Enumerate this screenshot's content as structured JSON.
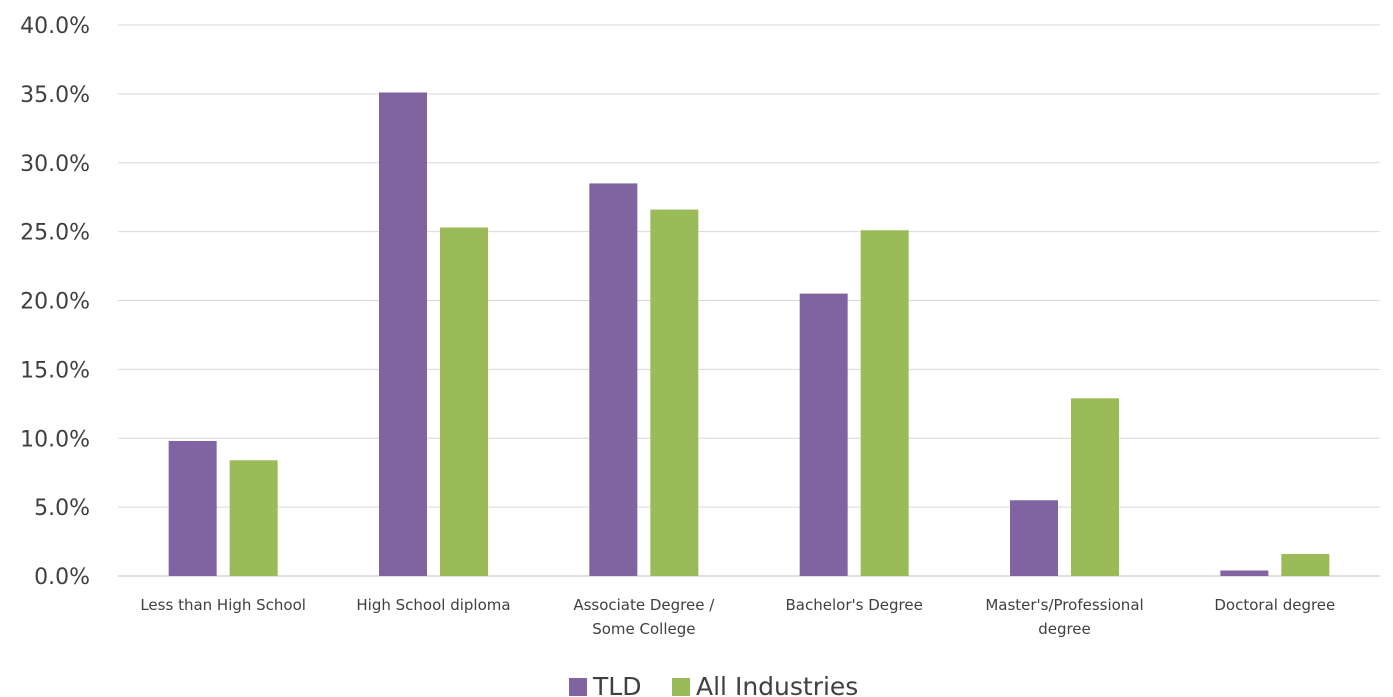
{
  "chart_data": {
    "type": "bar",
    "title": "",
    "xlabel": "",
    "ylabel": "",
    "categories": [
      [
        "Less than High School"
      ],
      [
        "High School diploma"
      ],
      [
        "Associate Degree /",
        "Some College"
      ],
      [
        "Bachelor's Degree"
      ],
      [
        "Master's/Professional",
        "degree"
      ],
      [
        "Doctoral degree"
      ]
    ],
    "series": [
      {
        "name": "TLD",
        "color": "#8064a2",
        "values": [
          9.8,
          35.1,
          28.5,
          20.5,
          5.5,
          0.4
        ]
      },
      {
        "name": "All Industries",
        "color": "#9bbb59",
        "values": [
          8.4,
          25.3,
          26.6,
          25.1,
          12.9,
          1.6
        ]
      }
    ],
    "ylim": [
      0,
      40
    ],
    "yticks": [
      0,
      5,
      10,
      15,
      20,
      25,
      30,
      35,
      40
    ],
    "ytick_format": "percent_one_decimal",
    "grid": true,
    "legend_position": "bottom"
  }
}
